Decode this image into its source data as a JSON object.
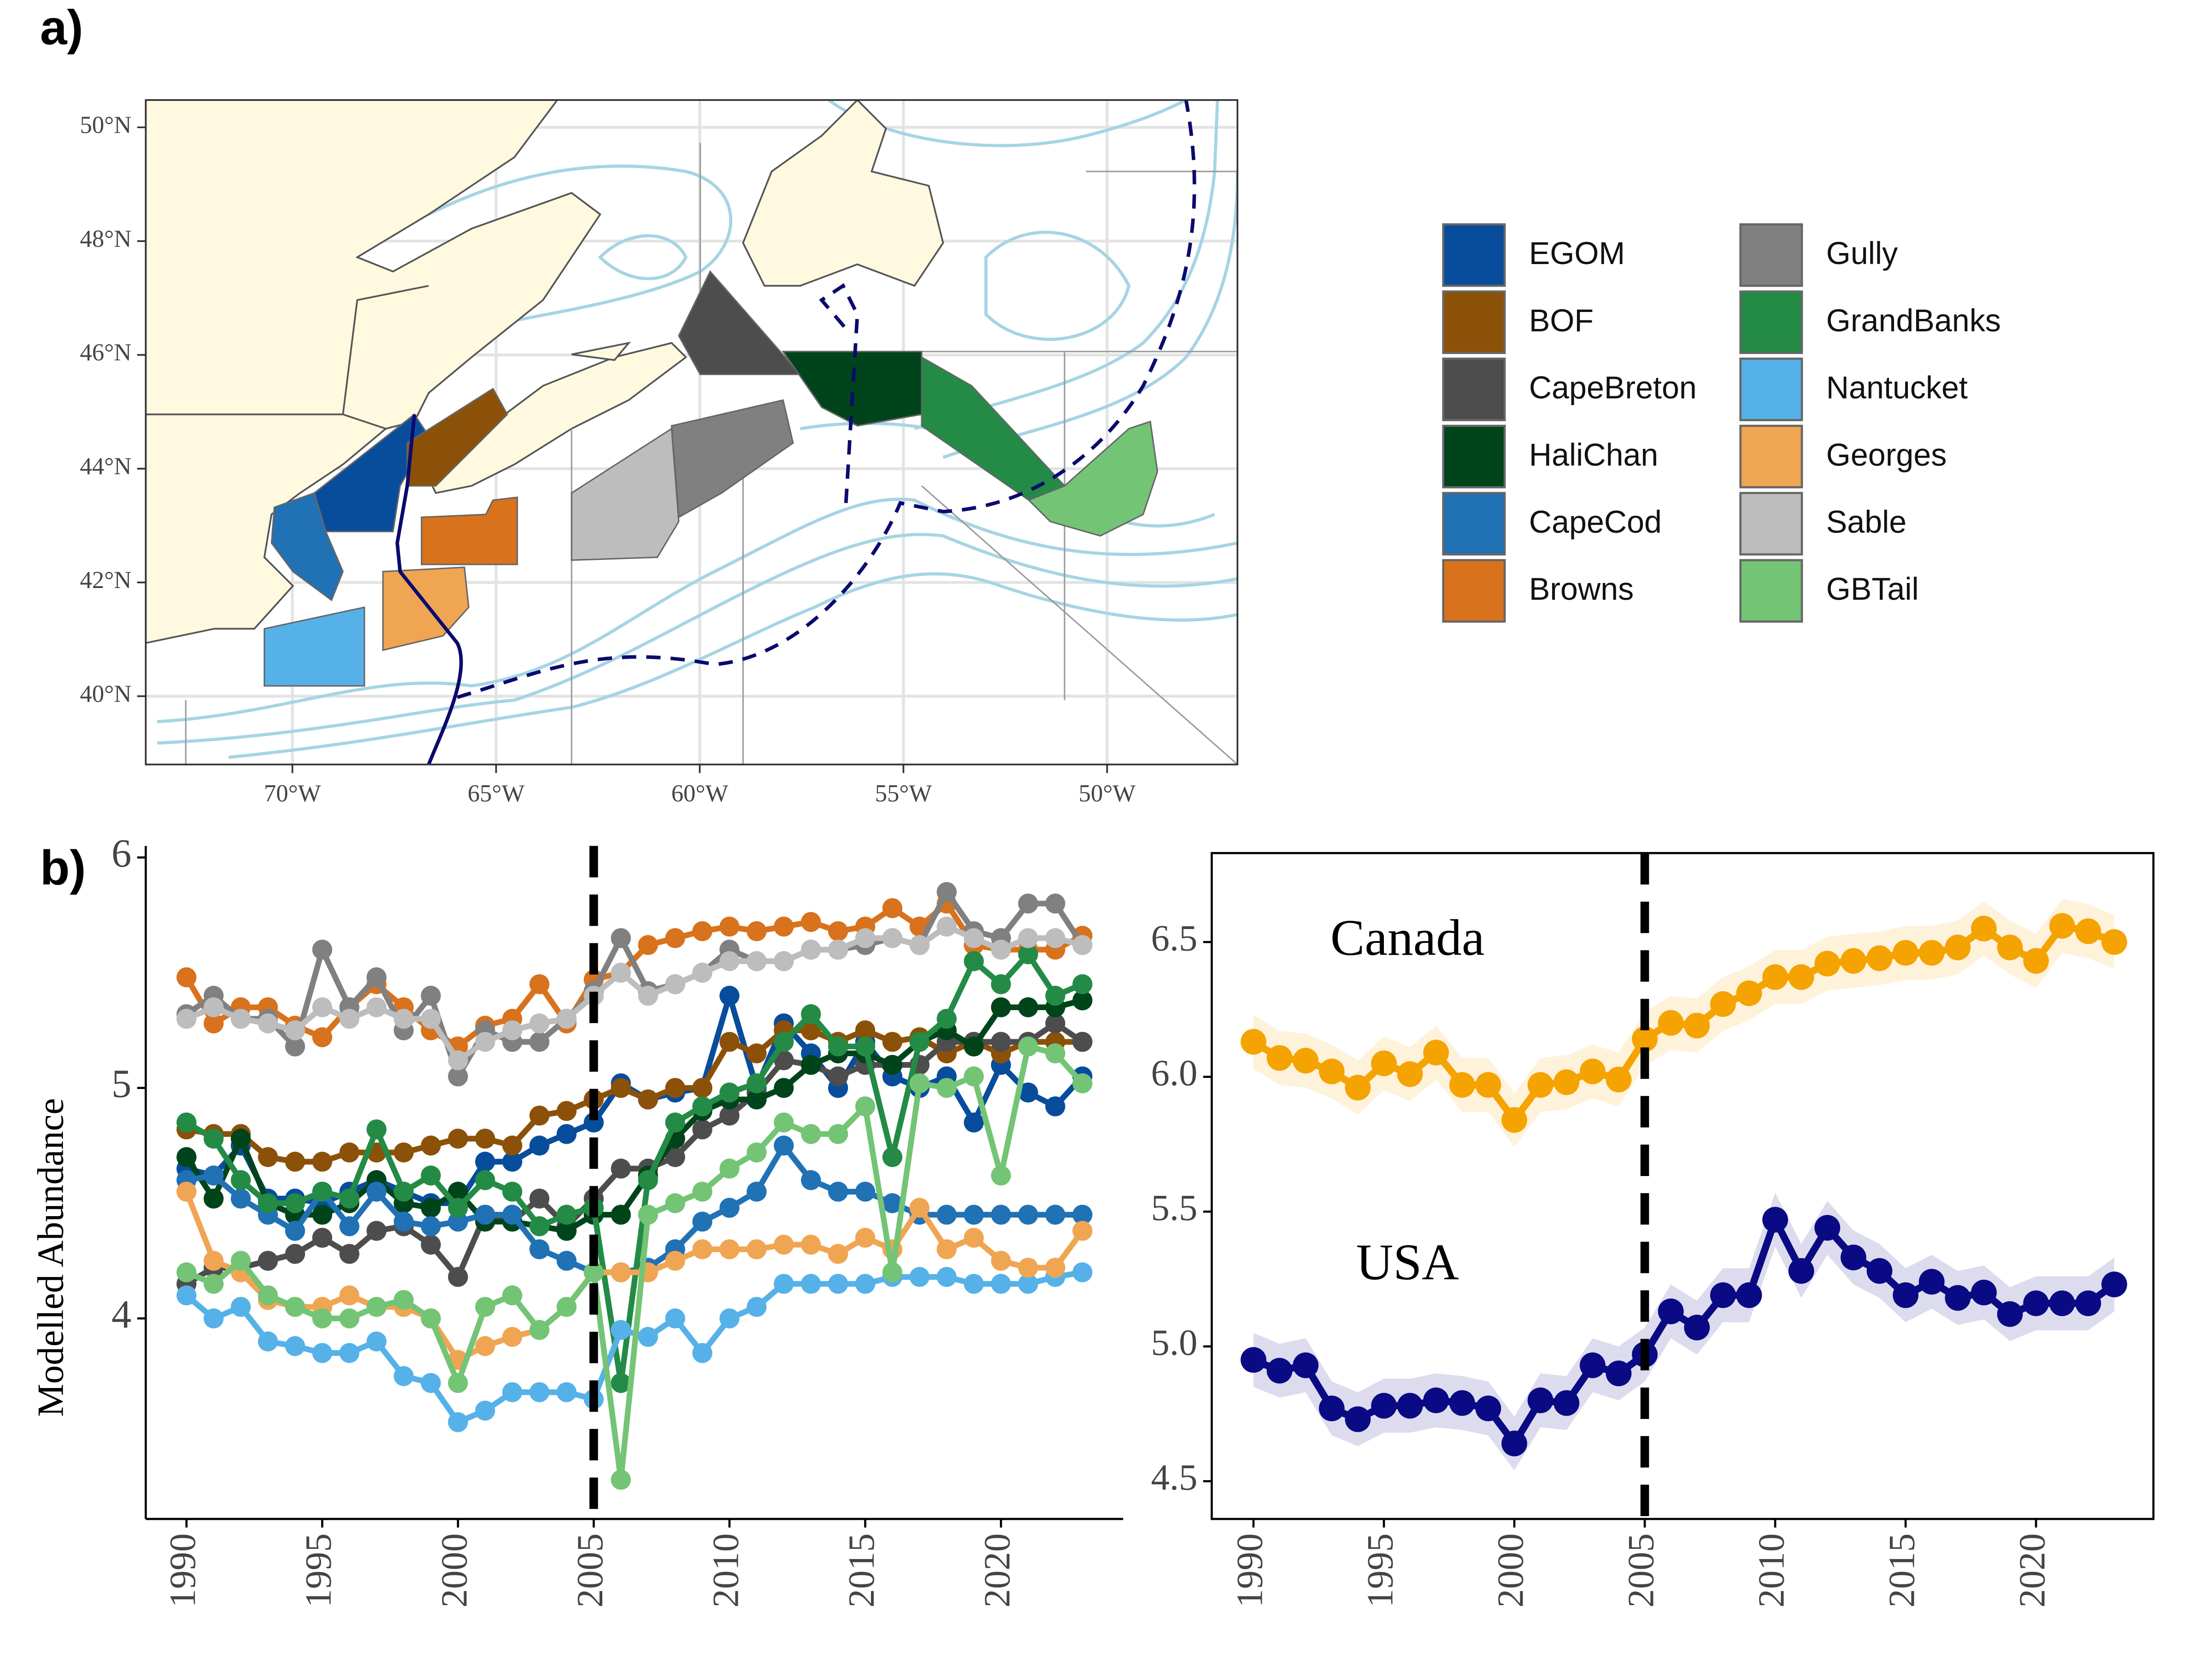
{
  "chart_data": [
    {
      "type": "map",
      "title": "a)",
      "xlim": [
        -73.6,
        -46.8
      ],
      "ylim": [
        38.8,
        50.48
      ],
      "xticks": [
        {
          "value": -70,
          "label": "70°W"
        },
        {
          "value": -65,
          "label": "65°W"
        },
        {
          "value": -60,
          "label": "60°W"
        },
        {
          "value": -55,
          "label": "55°W"
        },
        {
          "value": -50,
          "label": "50°W"
        }
      ],
      "yticks": [
        {
          "value": 40,
          "label": "40°N"
        },
        {
          "value": 42,
          "label": "42°N"
        },
        {
          "value": 44,
          "label": "44°N"
        },
        {
          "value": 46,
          "label": "46°N"
        },
        {
          "value": 48,
          "label": "48°N"
        },
        {
          "value": 50,
          "label": "50°N"
        }
      ],
      "grid": true
    },
    {
      "type": "line",
      "title": "b)",
      "y_label": "Modelled Abundance",
      "vline": 2005,
      "xlim": [
        1988.5,
        2024.5
      ],
      "ylim": [
        3.13,
        6.05
      ],
      "xticks": [
        1990,
        1995,
        2000,
        2005,
        2010,
        2015,
        2020
      ],
      "yticks": [
        4,
        5,
        6
      ],
      "x": [
        1990,
        1991,
        1992,
        1993,
        1994,
        1995,
        1996,
        1997,
        1998,
        1999,
        2000,
        2001,
        2002,
        2003,
        2004,
        2005,
        2006,
        2007,
        2008,
        2009,
        2010,
        2011,
        2012,
        2013,
        2014,
        2015,
        2016,
        2017,
        2018,
        2019,
        2020,
        2021,
        2022,
        2023
      ],
      "series": [
        {
          "name": "EGOM",
          "color": "#084d9c",
          "values": [
            4.65,
            4.62,
            4.75,
            4.52,
            4.52,
            4.5,
            4.55,
            4.6,
            4.55,
            4.5,
            4.5,
            4.68,
            4.68,
            4.75,
            4.8,
            4.85,
            5.02,
            4.95,
            4.98,
            5.0,
            5.4,
            5.0,
            5.28,
            5.15,
            5.0,
            5.2,
            5.05,
            5.0,
            5.05,
            4.85,
            5.1,
            4.98,
            4.92,
            5.05
          ]
        },
        {
          "name": "BOF",
          "color": "#8c5109",
          "values": [
            4.82,
            4.8,
            4.8,
            4.7,
            4.68,
            4.68,
            4.72,
            4.72,
            4.72,
            4.75,
            4.78,
            4.78,
            4.75,
            4.88,
            4.9,
            4.95,
            5.0,
            4.95,
            5.0,
            5.0,
            5.2,
            5.15,
            5.25,
            5.25,
            5.2,
            5.25,
            5.2,
            5.22,
            5.15,
            5.2,
            5.15,
            5.2,
            5.2,
            5.2
          ]
        },
        {
          "name": "CapeBreton",
          "color": "#4d4d4d",
          "values": [
            4.15,
            4.22,
            4.22,
            4.25,
            4.28,
            4.35,
            4.28,
            4.38,
            4.4,
            4.32,
            4.18,
            4.45,
            4.42,
            4.52,
            4.4,
            4.52,
            4.65,
            4.65,
            4.7,
            4.82,
            4.88,
            4.98,
            5.12,
            5.1,
            5.05,
            5.1,
            5.1,
            5.1,
            5.2,
            5.2,
            5.2,
            5.2,
            5.28,
            5.2
          ]
        },
        {
          "name": "HaliChan",
          "color": "#00441b",
          "values": [
            4.7,
            4.52,
            4.78,
            4.5,
            4.45,
            4.45,
            4.5,
            4.6,
            4.5,
            4.48,
            4.55,
            4.42,
            4.42,
            4.4,
            4.38,
            4.45,
            4.45,
            4.62,
            4.78,
            4.9,
            4.95,
            4.95,
            5.0,
            5.1,
            5.15,
            5.15,
            5.1,
            5.2,
            5.25,
            5.18,
            5.35,
            5.35,
            5.35,
            5.38
          ]
        },
        {
          "name": "CapeCod",
          "color": "#2171b5",
          "values": [
            4.6,
            4.62,
            4.52,
            4.45,
            4.38,
            4.55,
            4.4,
            4.55,
            4.42,
            4.4,
            4.42,
            4.45,
            4.45,
            4.3,
            4.25,
            4.2,
            4.2,
            4.22,
            4.3,
            4.42,
            4.48,
            4.55,
            4.75,
            4.6,
            4.55,
            4.55,
            4.5,
            4.45,
            4.45,
            4.45,
            4.45,
            4.45,
            4.45,
            4.45
          ]
        },
        {
          "name": "Browns",
          "color": "#d8721c",
          "values": [
            5.48,
            5.28,
            5.35,
            5.35,
            5.27,
            5.22,
            5.35,
            5.45,
            5.35,
            5.25,
            5.18,
            5.27,
            5.3,
            5.45,
            5.28,
            5.47,
            5.5,
            5.62,
            5.65,
            5.68,
            5.7,
            5.68,
            5.7,
            5.72,
            5.68,
            5.7,
            5.78,
            5.7,
            5.8,
            5.62,
            5.6,
            5.6,
            5.6,
            5.66
          ]
        },
        {
          "name": "Gully",
          "color": "#808080",
          "values": [
            5.32,
            5.4,
            5.3,
            5.3,
            5.18,
            5.6,
            5.35,
            5.48,
            5.25,
            5.4,
            5.05,
            5.25,
            5.2,
            5.2,
            5.3,
            5.42,
            5.65,
            5.42,
            5.45,
            5.5,
            5.6,
            5.55,
            5.55,
            5.6,
            5.6,
            5.62,
            5.65,
            5.62,
            5.85,
            5.68,
            5.65,
            5.8,
            5.8,
            5.62
          ]
        },
        {
          "name": "GrandBanks",
          "color": "#238b45",
          "values": [
            4.85,
            4.78,
            4.6,
            4.5,
            4.5,
            4.55,
            4.52,
            4.82,
            4.55,
            4.62,
            4.48,
            4.6,
            4.55,
            4.4,
            4.45,
            4.48,
            3.72,
            4.6,
            4.85,
            4.92,
            4.98,
            5.02,
            5.2,
            5.32,
            5.18,
            5.18,
            4.7,
            5.2,
            5.3,
            5.55,
            5.45,
            5.58,
            5.4,
            5.45
          ]
        },
        {
          "name": "Nantucket",
          "color": "#56b1e8",
          "values": [
            4.1,
            4.0,
            4.05,
            3.9,
            3.88,
            3.85,
            3.85,
            3.9,
            3.75,
            3.72,
            3.55,
            3.6,
            3.68,
            3.68,
            3.68,
            3.65,
            3.95,
            3.92,
            4.0,
            3.85,
            4.0,
            4.05,
            4.15,
            4.15,
            4.15,
            4.15,
            4.18,
            4.18,
            4.18,
            4.15,
            4.15,
            4.15,
            4.18,
            4.2
          ]
        },
        {
          "name": "Georges",
          "color": "#f0a553",
          "values": [
            4.55,
            4.25,
            4.2,
            4.08,
            4.05,
            4.05,
            4.1,
            4.05,
            4.05,
            4.0,
            3.82,
            3.88,
            3.92,
            3.95,
            4.05,
            4.2,
            4.2,
            4.2,
            4.25,
            4.3,
            4.3,
            4.3,
            4.32,
            4.32,
            4.28,
            4.35,
            4.3,
            4.48,
            4.3,
            4.35,
            4.25,
            4.22,
            4.22,
            4.38
          ]
        },
        {
          "name": "Sable",
          "color": "#bdbdbd",
          "values": [
            5.3,
            5.35,
            5.3,
            5.28,
            5.25,
            5.35,
            5.3,
            5.35,
            5.3,
            5.3,
            5.12,
            5.2,
            5.25,
            5.28,
            5.3,
            5.4,
            5.5,
            5.4,
            5.45,
            5.5,
            5.55,
            5.55,
            5.55,
            5.6,
            5.6,
            5.65,
            5.65,
            5.62,
            5.7,
            5.65,
            5.6,
            5.65,
            5.65,
            5.62
          ]
        },
        {
          "name": "GBTail",
          "color": "#74c476",
          "values": [
            4.2,
            4.15,
            4.25,
            4.1,
            4.05,
            4.0,
            4.0,
            4.05,
            4.08,
            4.0,
            3.72,
            4.05,
            4.1,
            3.95,
            4.05,
            4.2,
            3.3,
            4.45,
            4.5,
            4.55,
            4.65,
            4.72,
            4.85,
            4.8,
            4.8,
            4.92,
            4.2,
            5.02,
            5.0,
            5.05,
            4.62,
            5.18,
            5.15,
            5.02
          ]
        }
      ]
    },
    {
      "type": "line",
      "vline": 2005,
      "xlim": [
        1988.4,
        2024.5
      ],
      "ylim": [
        4.36,
        6.83
      ],
      "xticks": [
        1990,
        1995,
        2000,
        2005,
        2010,
        2015,
        2020
      ],
      "yticks": [
        4.5,
        {
          "value": 5,
          "label": "5.0"
        },
        5.5,
        {
          "value": 6,
          "label": "6.0"
        },
        6.5
      ],
      "x": [
        1990,
        1991,
        1992,
        1993,
        1994,
        1995,
        1996,
        1997,
        1998,
        1999,
        2000,
        2001,
        2002,
        2003,
        2004,
        2005,
        2006,
        2007,
        2008,
        2009,
        2010,
        2011,
        2012,
        2013,
        2014,
        2015,
        2016,
        2017,
        2018,
        2019,
        2020,
        2021,
        2022,
        2023
      ],
      "series": [
        {
          "name": "Canada",
          "color": "#f5a300",
          "values": [
            6.13,
            6.07,
            6.06,
            6.02,
            5.96,
            6.05,
            6.01,
            6.09,
            5.97,
            5.97,
            5.84,
            5.97,
            5.98,
            6.02,
            5.99,
            6.14,
            6.2,
            6.19,
            6.27,
            6.31,
            6.37,
            6.37,
            6.42,
            6.43,
            6.44,
            6.46,
            6.46,
            6.48,
            6.55,
            6.48,
            6.43,
            6.56,
            6.54,
            6.5
          ],
          "lower": [
            6.03,
            5.97,
            5.96,
            5.92,
            5.86,
            5.95,
            5.91,
            5.99,
            5.87,
            5.87,
            5.74,
            5.87,
            5.88,
            5.92,
            5.89,
            6.04,
            6.1,
            6.09,
            6.17,
            6.21,
            6.27,
            6.27,
            6.32,
            6.33,
            6.34,
            6.36,
            6.36,
            6.38,
            6.45,
            6.38,
            6.33,
            6.46,
            6.44,
            6.4
          ],
          "upper": [
            6.23,
            6.17,
            6.16,
            6.12,
            6.06,
            6.15,
            6.11,
            6.19,
            6.07,
            6.07,
            5.94,
            6.07,
            6.08,
            6.12,
            6.09,
            6.24,
            6.3,
            6.29,
            6.37,
            6.41,
            6.47,
            6.47,
            6.52,
            6.53,
            6.54,
            6.56,
            6.56,
            6.58,
            6.65,
            6.58,
            6.53,
            6.66,
            6.64,
            6.6
          ]
        },
        {
          "name": "USA",
          "color": "#0a0a85",
          "values": [
            4.95,
            4.91,
            4.93,
            4.77,
            4.73,
            4.78,
            4.78,
            4.8,
            4.79,
            4.77,
            4.64,
            4.8,
            4.79,
            4.93,
            4.9,
            4.97,
            5.13,
            5.07,
            5.19,
            5.19,
            5.47,
            5.28,
            5.44,
            5.33,
            5.28,
            5.19,
            5.24,
            5.18,
            5.2,
            5.12,
            5.16,
            5.16,
            5.16,
            5.23
          ],
          "lower": [
            4.85,
            4.81,
            4.83,
            4.67,
            4.63,
            4.68,
            4.68,
            4.7,
            4.69,
            4.67,
            4.54,
            4.7,
            4.69,
            4.83,
            4.8,
            4.87,
            5.03,
            4.97,
            5.09,
            5.09,
            5.37,
            5.18,
            5.34,
            5.23,
            5.18,
            5.09,
            5.14,
            5.08,
            5.1,
            5.02,
            5.06,
            5.06,
            5.06,
            5.13
          ],
          "upper": [
            5.05,
            5.01,
            5.03,
            4.87,
            4.83,
            4.88,
            4.88,
            4.9,
            4.89,
            4.87,
            4.74,
            4.9,
            4.89,
            5.03,
            5.0,
            5.07,
            5.23,
            5.17,
            5.29,
            5.29,
            5.57,
            5.38,
            5.54,
            5.43,
            5.38,
            5.29,
            5.34,
            5.28,
            5.3,
            5.22,
            5.26,
            5.26,
            5.26,
            5.33
          ]
        }
      ]
    }
  ]
}
